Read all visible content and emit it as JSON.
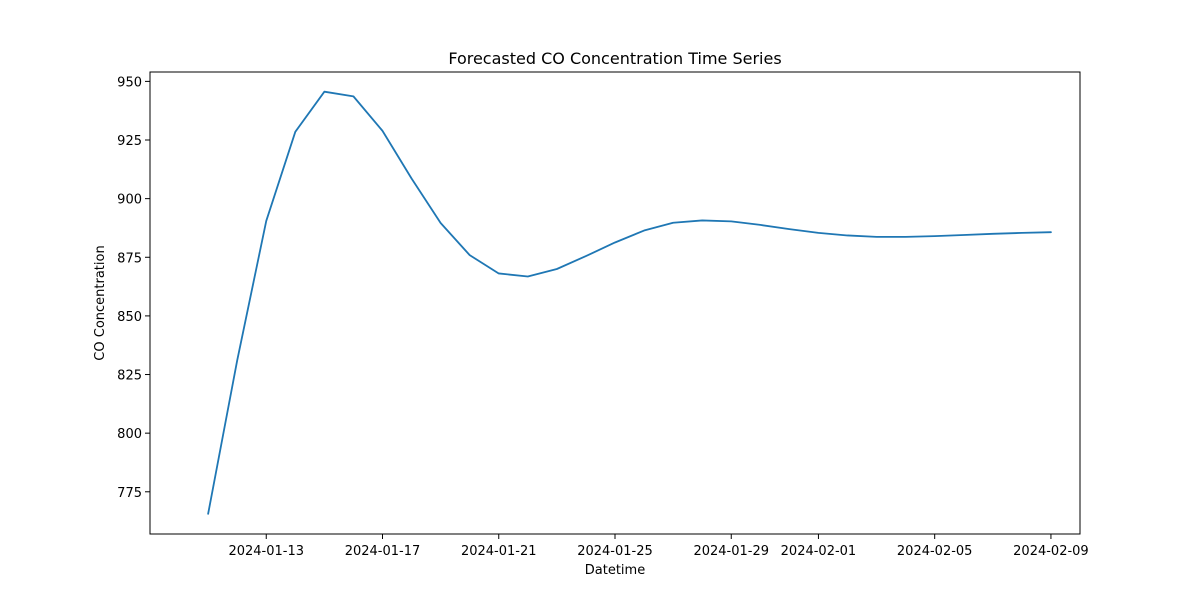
{
  "chart_data": {
    "type": "line",
    "title": "Forecasted CO Concentration Time Series",
    "xlabel": "Datetime",
    "ylabel": "CO Concentration",
    "xlim": [
      "2024-01-09",
      "2024-02-10"
    ],
    "ylim": [
      757,
      954
    ],
    "x_ticks": [
      "2024-01-13",
      "2024-01-17",
      "2024-01-21",
      "2024-01-25",
      "2024-01-29",
      "2024-02-01",
      "2024-02-05",
      "2024-02-09"
    ],
    "y_ticks": [
      775,
      800,
      825,
      850,
      875,
      900,
      925,
      950
    ],
    "grid": false,
    "line_color": "#1f77b4",
    "series": [
      {
        "x": [
          "2024-01-11",
          "2024-01-12",
          "2024-01-13",
          "2024-01-14",
          "2024-01-15",
          "2024-01-16",
          "2024-01-17",
          "2024-01-18",
          "2024-01-19",
          "2024-01-20",
          "2024-01-21",
          "2024-01-22",
          "2024-01-23",
          "2024-01-24",
          "2024-01-25",
          "2024-01-26",
          "2024-01-27",
          "2024-01-28",
          "2024-01-29",
          "2024-01-30",
          "2024-01-31",
          "2024-02-01",
          "2024-02-02",
          "2024-02-03",
          "2024-02-04",
          "2024-02-05",
          "2024-02-06",
          "2024-02-07",
          "2024-02-08",
          "2024-02-09"
        ],
        "values": [
          765.6,
          831.0,
          890.5,
          928.5,
          945.6,
          943.6,
          928.9,
          908.6,
          889.6,
          875.9,
          868.1,
          866.8,
          870.0,
          875.5,
          881.3,
          886.4,
          889.7,
          890.7,
          890.3,
          888.8,
          887.0,
          885.4,
          884.3,
          883.7,
          883.7,
          884.0,
          884.5,
          885.0,
          885.4,
          885.7
        ]
      }
    ]
  }
}
